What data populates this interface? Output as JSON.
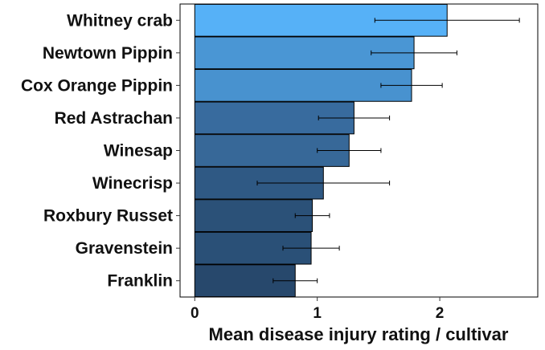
{
  "chart_data": {
    "type": "bar",
    "orientation": "horizontal",
    "title": "",
    "xlabel": "Mean disease injury rating / cultivar",
    "ylabel": "",
    "xlim": [
      -0.12,
      2.8
    ],
    "xticks": [
      0,
      1,
      2
    ],
    "xtick_labels": [
      "0",
      "1",
      "2"
    ],
    "grid": false,
    "legend": "none",
    "categories": [
      "Whitney crab",
      "Newtown Pippin",
      "Cox Orange Pippin",
      "Red Astrachan",
      "Winesap",
      "Winecrisp",
      "Roxbury Russet",
      "Gravenstein",
      "Franklin"
    ],
    "values": [
      2.06,
      1.79,
      1.77,
      1.3,
      1.26,
      1.05,
      0.96,
      0.95,
      0.82
    ],
    "error": [
      0.59,
      0.35,
      0.25,
      0.29,
      0.26,
      0.54,
      0.14,
      0.23,
      0.18
    ],
    "colors": [
      "#56B1F7",
      "#4A96D4",
      "#4892CF",
      "#386B9E",
      "#376898",
      "#2F5984",
      "#2B5178",
      "#2A5077",
      "#27486C"
    ]
  }
}
